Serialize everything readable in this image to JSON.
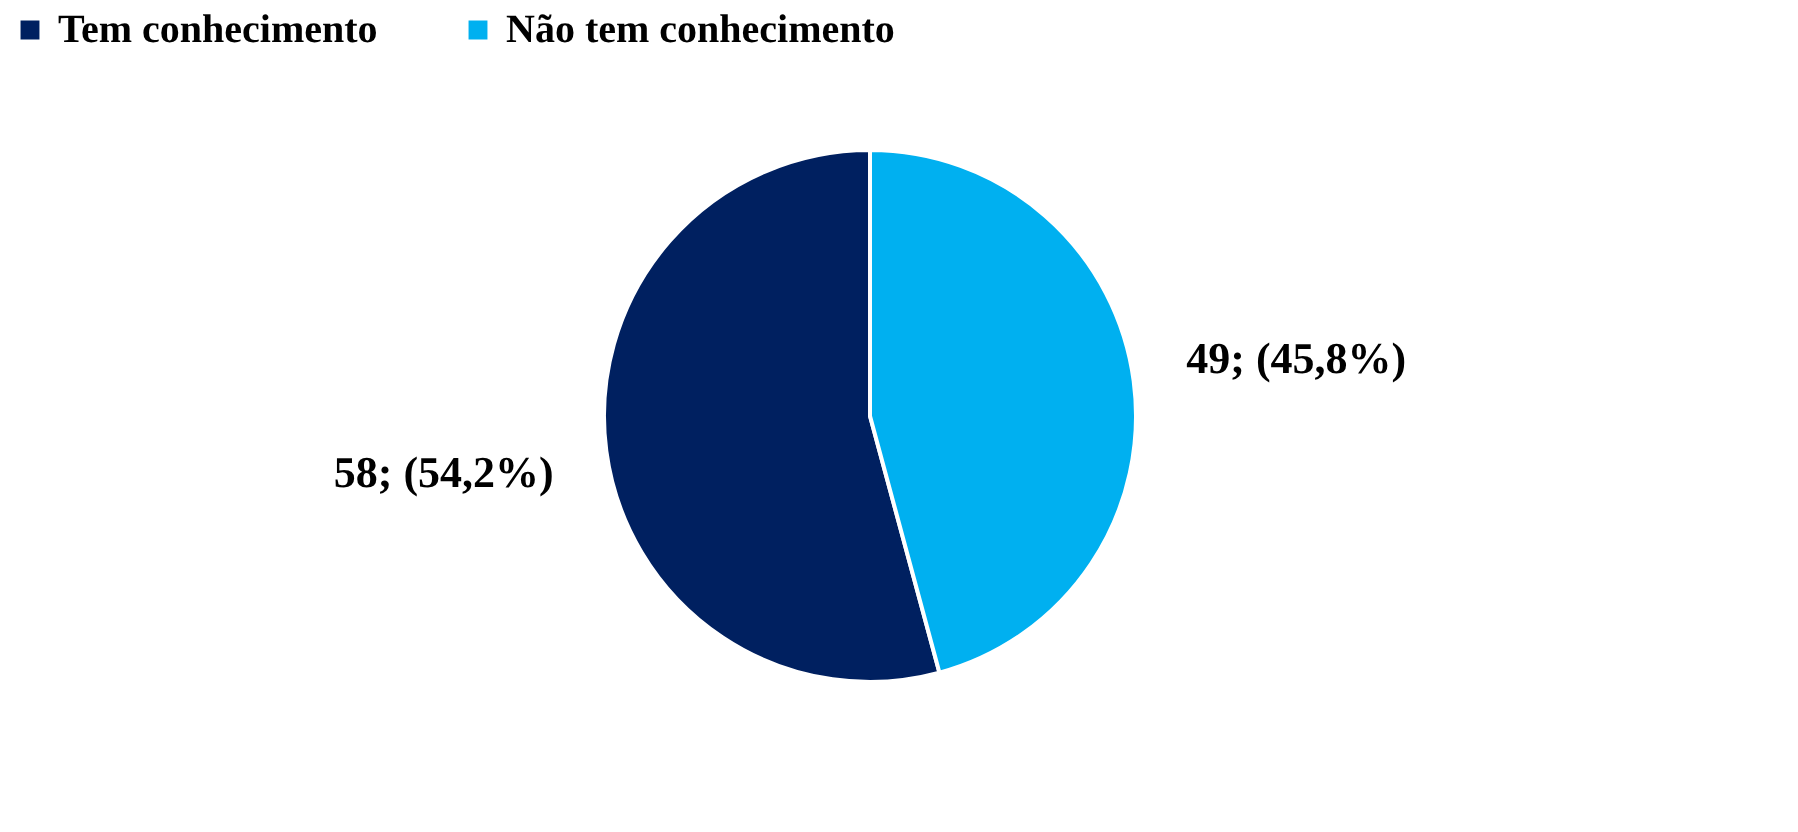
{
  "chart_data": {
    "type": "pie",
    "categories": [
      "Tem conhecimento",
      "Não tem conhecimento"
    ],
    "values": [
      58,
      49
    ],
    "colors": [
      "#002060",
      "#00b0f0"
    ],
    "value_labels": [
      "58; (54,2%)",
      "49; (45,8%)"
    ],
    "legend": "top"
  }
}
